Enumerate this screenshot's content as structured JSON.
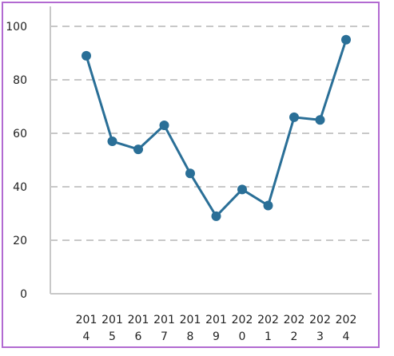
{
  "colors": {
    "frame": "#b26ad1",
    "line": "#2a6f97",
    "marker": "#2a6f97",
    "grid": "#c8c8c8",
    "axis": "#c8c8c8",
    "text": "#222222"
  },
  "chart_data": {
    "type": "line",
    "title": "",
    "xlabel": "",
    "ylabel": "",
    "grid": true,
    "ylim": [
      0,
      100
    ],
    "yticks": [
      0,
      20,
      40,
      60,
      80,
      100
    ],
    "categories": [
      "2014",
      "2015",
      "2016",
      "2017",
      "2018",
      "2019",
      "2020",
      "2021",
      "2022",
      "2023",
      "2024"
    ],
    "category_lines": [
      [
        "201",
        "4"
      ],
      [
        "201",
        "5"
      ],
      [
        "201",
        "6"
      ],
      [
        "201",
        "7"
      ],
      [
        "201",
        "8"
      ],
      [
        "201",
        "9"
      ],
      [
        "202",
        "0"
      ],
      [
        "202",
        "1"
      ],
      [
        "202",
        "2"
      ],
      [
        "202",
        "3"
      ],
      [
        "202",
        "4"
      ]
    ],
    "series": [
      {
        "values": [
          89,
          57,
          54,
          63,
          45,
          29,
          39,
          33,
          66,
          65,
          95
        ]
      }
    ]
  }
}
